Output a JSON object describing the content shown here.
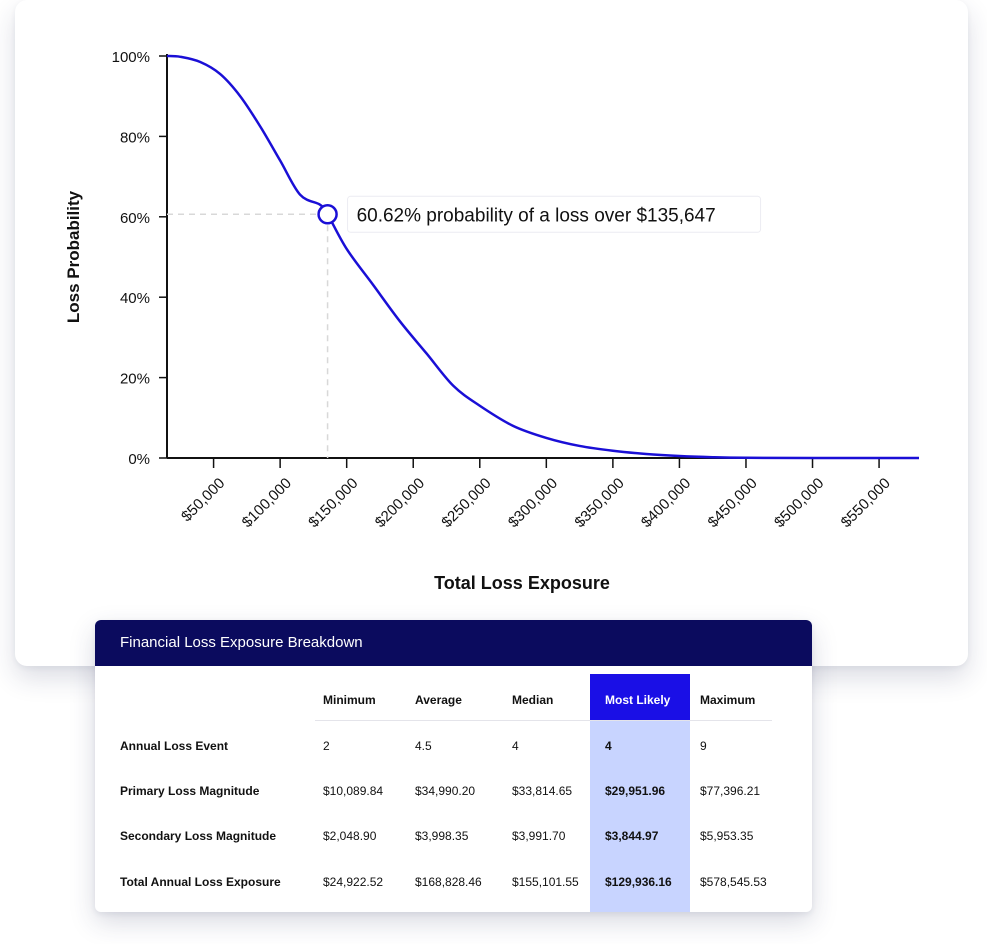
{
  "chart_data": {
    "type": "line",
    "title": "",
    "xlabel": "Total Loss Exposure",
    "ylabel": "Loss Probability",
    "x_tick_labels": [
      "$50,000",
      "$100,000",
      "$150,000",
      "$200,000",
      "$250,000",
      "$300,000",
      "$350,000",
      "$400,000",
      "$450,000",
      "$500,000",
      "$550,000"
    ],
    "y_tick_labels": [
      "100%",
      "80%",
      "60%",
      "40%",
      "20%",
      "0%"
    ],
    "xlim": [
      15000,
      580000
    ],
    "ylim": [
      0,
      1
    ],
    "grid": false,
    "series": [
      {
        "color": "#1a0fd6",
        "x": [
          15000,
          25000,
          40000,
          55000,
          70000,
          85000,
          100000,
          115000,
          130000,
          135647,
          150000,
          170000,
          190000,
          210000,
          230000,
          250000,
          275000,
          300000,
          325000,
          350000,
          375000,
          400000,
          425000,
          450000,
          500000,
          580000
        ],
        "y": [
          1.0,
          0.998,
          0.985,
          0.955,
          0.9,
          0.825,
          0.74,
          0.655,
          0.63,
          0.6062,
          0.52,
          0.43,
          0.34,
          0.26,
          0.18,
          0.13,
          0.08,
          0.05,
          0.03,
          0.018,
          0.01,
          0.005,
          0.002,
          0.0005,
          0.0,
          0.0
        ]
      }
    ],
    "annotation": {
      "x": 135647,
      "y": 0.6062,
      "text": "60.62% probability of a loss over $135,647"
    }
  },
  "table": {
    "title": "Financial Loss Exposure Breakdown",
    "columns": [
      "Minimum",
      "Average",
      "Median",
      "Most Likely",
      "Maximum"
    ],
    "highlight_column": 3,
    "rows": [
      {
        "label": "Annual Loss Event",
        "values": [
          "2",
          "4.5",
          "4",
          "4",
          "9"
        ]
      },
      {
        "label": "Primary Loss Magnitude",
        "values": [
          "$10,089.84",
          "$34,990.20",
          "$33,814.65",
          "$29,951.96",
          "$77,396.21"
        ]
      },
      {
        "label": "Secondary Loss Magnitude",
        "values": [
          "$2,048.90",
          "$3,998.35",
          "$3,991.70",
          "$3,844.97",
          "$5,953.35"
        ]
      },
      {
        "label": "Total Annual Loss Exposure",
        "values": [
          "$24,922.52",
          "$168,828.46",
          "$155,101.55",
          "$129,936.16",
          "$578,545.53"
        ]
      }
    ]
  }
}
